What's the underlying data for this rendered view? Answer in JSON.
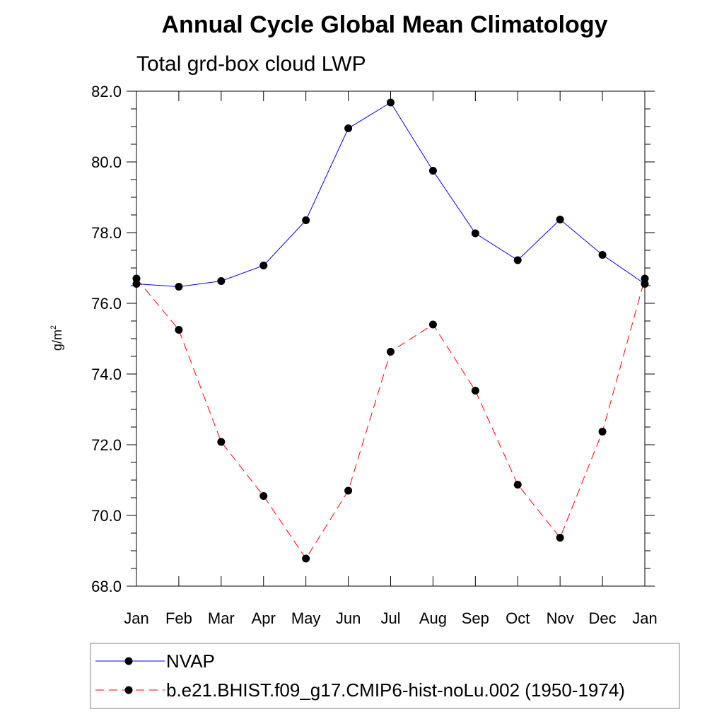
{
  "chart_data": {
    "type": "line",
    "title": "Annual Cycle Global Mean Climatology",
    "subtitle": "Total grd-box cloud LWP",
    "xlabel": "",
    "ylabel": "g/m",
    "ylabel_superscript": "2",
    "categories": [
      "Jan",
      "Feb",
      "Mar",
      "Apr",
      "May",
      "Jun",
      "Jul",
      "Aug",
      "Sep",
      "Oct",
      "Nov",
      "Dec",
      "Jan"
    ],
    "ylim": [
      68.0,
      82.0
    ],
    "yticks": [
      "68.0",
      "70.0",
      "72.0",
      "74.0",
      "76.0",
      "78.0",
      "80.0",
      "82.0"
    ],
    "grid": false,
    "legend_position": "bottom",
    "series": [
      {
        "name": "NVAP",
        "color": "#0000ff",
        "dash": "solid",
        "values": [
          76.55,
          76.47,
          76.63,
          77.07,
          78.35,
          80.95,
          81.68,
          79.75,
          77.98,
          77.22,
          78.37,
          77.37,
          76.55
        ]
      },
      {
        "name": "b.e21.BHIST.f09_g17.CMIP6-hist-noLu.002 (1950-1974)",
        "color": "#ff0000",
        "dash": "dashed",
        "values": [
          76.7,
          75.25,
          72.08,
          70.55,
          68.78,
          70.7,
          74.63,
          75.4,
          73.53,
          70.87,
          69.37,
          72.37,
          76.7
        ]
      }
    ],
    "marker_color": "#000000"
  }
}
